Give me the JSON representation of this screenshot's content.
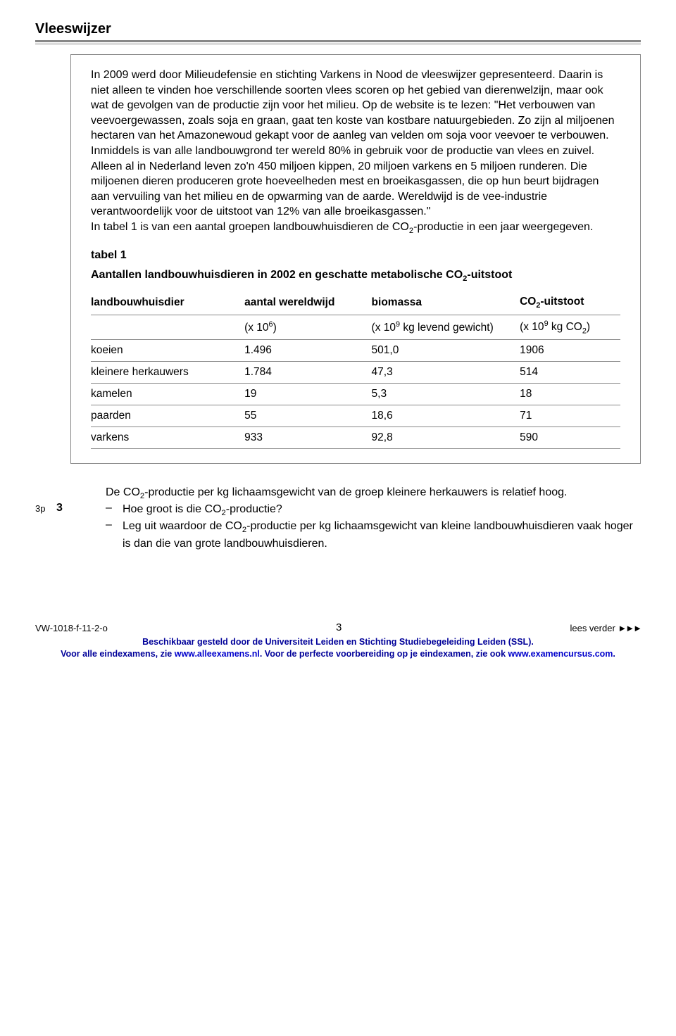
{
  "title": "Vleeswijzer",
  "body_text": "In 2009 werd door Milieudefensie en stichting Varkens in Nood de vleeswijzer gepresenteerd. Daarin is niet alleen te vinden hoe verschillende soorten vlees scoren op het gebied van dierenwelzijn, maar ook wat de gevolgen van de productie zijn voor het milieu. Op de website is te lezen: \"Het verbouwen van veevoergewassen, zoals soja en graan, gaat ten koste van kostbare natuurgebieden. Zo zijn al miljoenen hectaren van het Amazonewoud gekapt voor de aanleg van velden om soja voor veevoer te verbouwen. Inmiddels is van alle landbouwgrond ter wereld 80% in gebruik voor de productie van vlees en zuivel. Alleen al in Nederland leven zo'n 450 miljoen kippen, 20 miljoen varkens en 5 miljoen runderen. Die miljoenen dieren produceren grote hoeveelheden mest en broeikasgassen, die op hun beurt bijdragen aan vervuiling van het milieu en de opwarming van de aarde. Wereldwijd is de vee-industrie verantwoordelijk voor de uitstoot van 12% van alle broeikasgassen.\"\nIn tabel 1 is van een aantal groepen landbouwhuisdieren de CO₂-productie in een jaar weergegeven.",
  "table": {
    "label": "tabel 1",
    "caption": "Aantallen landbouwhuisdieren in 2002 en geschatte metabolische CO₂-uitstoot",
    "headers": [
      "landbouwhuisdier",
      "aantal wereldwijd",
      "biomassa",
      "CO₂-uitstoot"
    ],
    "units": [
      "",
      "(x 10⁶)",
      "(x 10⁹ kg levend gewicht)",
      "(x 10⁹ kg CO₂)"
    ],
    "rows": [
      [
        "koeien",
        "1.496",
        "501,0",
        "1906"
      ],
      [
        "kleinere herkauwers",
        "1.784",
        "47,3",
        "514"
      ],
      [
        "kamelen",
        "19",
        "5,3",
        "18"
      ],
      [
        "paarden",
        "55",
        "18,6",
        "71"
      ],
      [
        "varkens",
        "933",
        "92,8",
        "590"
      ]
    ]
  },
  "question": {
    "intro": "De CO₂-productie per kg lichaamsgewicht van de groep kleinere herkauwers is relatief hoog.",
    "points": "3p",
    "number": "3",
    "items": [
      "Hoe groot is die CO₂-productie?",
      "Leg uit waardoor de CO₂-productie per kg lichaamsgewicht van kleine landbouwhuisdieren vaak hoger is dan die van grote landbouwhuisdieren."
    ]
  },
  "footer": {
    "doc_code": "VW-1018-f-11-2-o",
    "page_num": "3",
    "lees_verder": "lees verder ►►►",
    "line1": "Beschikbaar gesteld door de Universiteit Leiden en Stichting Studiebegeleiding Leiden (SSL).",
    "line2_a": "Voor alle eindexamens, zie ",
    "line2_link1": "www.alleexamens.nl",
    "line2_b": ". Voor de perfecte voorbereiding op je eindexamen, zie ook ",
    "line2_link2": "www.examencursus.com",
    "line2_c": ".",
    "link_color": "#0000cc",
    "text_color": "#000099"
  }
}
